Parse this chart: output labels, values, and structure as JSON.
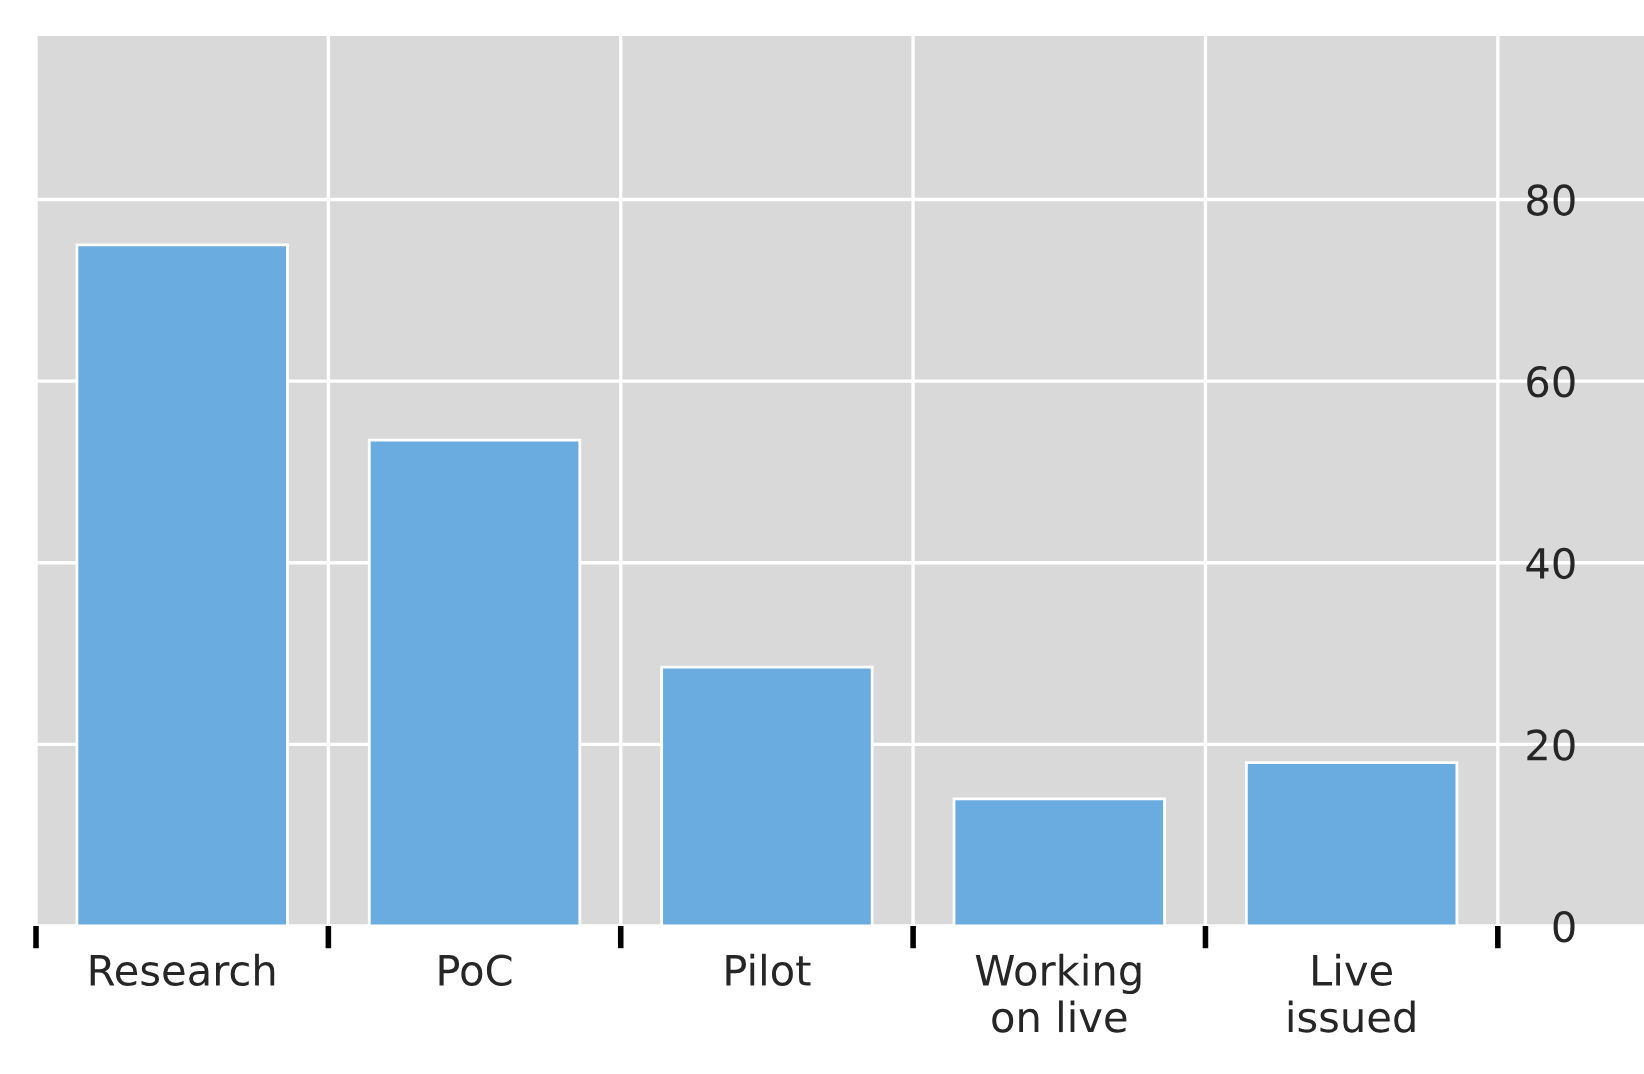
{
  "chart_data": {
    "type": "bar",
    "categories": [
      "Research",
      "PoC",
      "Pilot",
      "Working\non live",
      "Live\nissued"
    ],
    "values": [
      75,
      53.5,
      28.5,
      14,
      18
    ],
    "color": "#6aabe0",
    "ylim": [
      0,
      98
    ],
    "yticks": [
      0,
      20,
      40,
      60,
      80
    ],
    "grid": true
  }
}
